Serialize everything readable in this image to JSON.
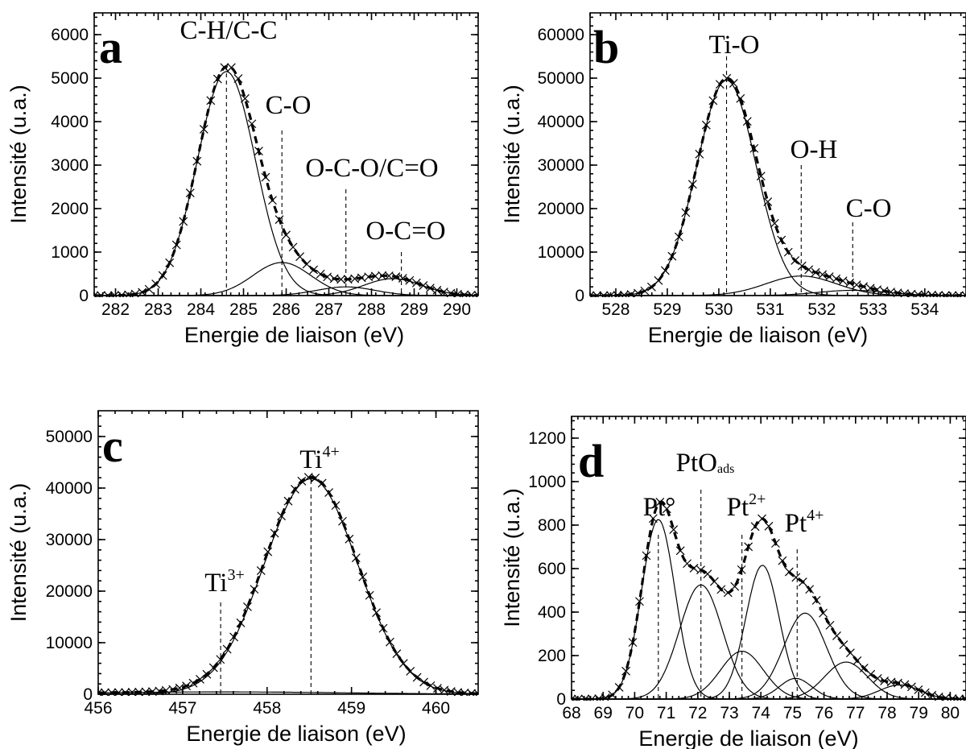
{
  "chart_data": [
    {
      "type": "line",
      "panel_label": "a",
      "xlabel": "Energie de liaison (eV)",
      "ylabel": "Intensité (u.a.)",
      "xlim": [
        281.5,
        290.5
      ],
      "ylim": [
        0,
        6500
      ],
      "xticks": [
        282,
        283,
        284,
        285,
        286,
        287,
        288,
        289,
        290
      ],
      "yticks": [
        0,
        1000,
        2000,
        3000,
        4000,
        5000,
        6000
      ],
      "components": [
        {
          "center": 284.6,
          "height": 5150,
          "fwhm": 1.6
        },
        {
          "center": 285.9,
          "height": 760,
          "fwhm": 1.6
        },
        {
          "center": 287.4,
          "height": 200,
          "fwhm": 1.6
        },
        {
          "center": 288.5,
          "height": 390,
          "fwhm": 1.6
        }
      ],
      "peaks": [
        {
          "label": "C-H/C-C",
          "sup": "",
          "sub": "",
          "position": 284.6
        },
        {
          "label": "C-O",
          "sup": "",
          "sub": "",
          "position": 285.9
        },
        {
          "label": "O-C-O/C=O",
          "sup": "",
          "sub": "",
          "position": 287.4
        },
        {
          "label": "O-C=O",
          "sup": "",
          "sub": "",
          "position": 288.7
        }
      ],
      "grid": false
    },
    {
      "type": "line",
      "panel_label": "b",
      "xlabel": "Energie de liaison (eV)",
      "ylabel": "Intensité (u.a.)",
      "xlim": [
        527.5,
        534.8
      ],
      "ylim": [
        0,
        65000
      ],
      "xticks": [
        528,
        529,
        530,
        531,
        532,
        533,
        534
      ],
      "yticks": [
        0,
        10000,
        20000,
        30000,
        40000,
        50000,
        60000
      ],
      "components": [
        {
          "center": 530.15,
          "height": 49500,
          "fwhm": 1.35
        },
        {
          "center": 531.6,
          "height": 4500,
          "fwhm": 1.6
        },
        {
          "center": 532.6,
          "height": 1200,
          "fwhm": 1.6
        }
      ],
      "peaks": [
        {
          "label": "Ti-O",
          "sup": "",
          "sub": "",
          "position": 530.15
        },
        {
          "label": "O-H",
          "sup": "",
          "sub": "",
          "position": 531.6
        },
        {
          "label": "C-O",
          "sup": "",
          "sub": "",
          "position": 532.6
        }
      ],
      "grid": false
    },
    {
      "type": "line",
      "panel_label": "c",
      "xlabel": "Energie de liaison (eV)",
      "ylabel": "Intensité (u.a.)",
      "xlim": [
        456,
        460.5
      ],
      "ylim": [
        0,
        55000
      ],
      "xticks": [
        456,
        457,
        458,
        459,
        460
      ],
      "yticks": [
        0,
        10000,
        20000,
        30000,
        40000,
        50000
      ],
      "components": [
        {
          "center": 458.52,
          "height": 41800,
          "fwhm": 1.3
        },
        {
          "center": 457.45,
          "height": 450,
          "fwhm": 3.5
        }
      ],
      "peaks": [
        {
          "label": "Ti",
          "sup": "3+",
          "sub": "",
          "position": 457.45
        },
        {
          "label": "Ti",
          "sup": "4+",
          "sub": "",
          "position": 458.52
        }
      ],
      "grid": false
    },
    {
      "type": "line",
      "panel_label": "d",
      "xlabel": "Energie de liaison (eV)",
      "ylabel": "Intensité (u.a.)",
      "xlim": [
        68,
        80.5
      ],
      "ylim": [
        0,
        1300
      ],
      "xticks": [
        68,
        69,
        70,
        71,
        72,
        73,
        74,
        75,
        76,
        77,
        78,
        79,
        80
      ],
      "yticks": [
        0,
        200,
        400,
        600,
        800,
        1000,
        1200
      ],
      "components": [
        {
          "center": 70.75,
          "height": 825,
          "fwhm": 1.25
        },
        {
          "center": 72.1,
          "height": 525,
          "fwhm": 1.6
        },
        {
          "center": 73.4,
          "height": 220,
          "fwhm": 1.6
        },
        {
          "center": 74.05,
          "height": 615,
          "fwhm": 1.25
        },
        {
          "center": 75.4,
          "height": 395,
          "fwhm": 1.6
        },
        {
          "center": 75.1,
          "height": 95,
          "fwhm": 1.2
        },
        {
          "center": 76.7,
          "height": 170,
          "fwhm": 1.6
        },
        {
          "center": 78.4,
          "height": 65,
          "fwhm": 1.5
        }
      ],
      "peaks": [
        {
          "label": "Pt°",
          "sup": "",
          "sub": "",
          "position": 70.75
        },
        {
          "label": "PtO",
          "sup": "",
          "sub": "ads",
          "position": 72.1
        },
        {
          "label": "Pt",
          "sup": "2+",
          "sub": "",
          "position": 73.4
        },
        {
          "label": "Pt",
          "sup": "4+",
          "sub": "",
          "position": 75.15
        }
      ],
      "grid": false
    }
  ]
}
